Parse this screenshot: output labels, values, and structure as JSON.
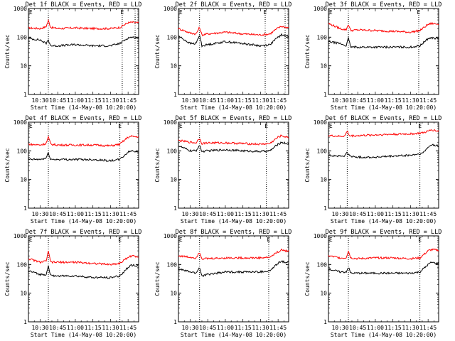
{
  "chart_data": [
    {
      "type": "line",
      "title": "Det 1f BLACK = Events, RED = LLD",
      "ylabel": "Counts/sec",
      "xlabel": "Start Time (14-May-08 10:20:00)",
      "yscale": "log",
      "ylim": [
        1,
        1000
      ],
      "xlim": [
        "10:20",
        "11:54"
      ],
      "yticks": [
        "1",
        "10",
        "100",
        "1000"
      ],
      "xticks": [
        "10:30",
        "10:45",
        "11:00",
        "11:15",
        "11:30",
        "11:45"
      ],
      "markers": [
        {
          "label": "E",
          "time": "10:22"
        },
        {
          "label": "E",
          "time": "11:40"
        }
      ],
      "vlines": [
        "10:37",
        "11:40",
        "11:51"
      ],
      "series": [
        {
          "name": "LLD",
          "color": "#ff0000",
          "x": [
            "10:20",
            "10:30",
            "10:35",
            "10:37",
            "10:39",
            "10:45",
            "11:00",
            "11:15",
            "11:30",
            "11:38",
            "11:45",
            "11:48",
            "11:52"
          ],
          "values": [
            210,
            200,
            230,
            380,
            220,
            200,
            210,
            200,
            200,
            220,
            320,
            330,
            320
          ]
        },
        {
          "name": "Events",
          "color": "#000000",
          "x": [
            "10:20",
            "10:30",
            "10:35",
            "10:37",
            "10:39",
            "10:45",
            "11:00",
            "11:15",
            "11:30",
            "11:38",
            "11:45",
            "11:48",
            "11:52"
          ],
          "values": [
            90,
            80,
            60,
            80,
            50,
            50,
            55,
            50,
            50,
            60,
            95,
            100,
            95
          ]
        }
      ]
    },
    {
      "type": "line",
      "title": "Det 2f BLACK = Events, RED = LLD",
      "ylabel": "Counts/sec",
      "xlabel": "Start Time (14-May-08 10:20:00)",
      "yscale": "log",
      "ylim": [
        1,
        1000
      ],
      "xlim": [
        "10:20",
        "11:54"
      ],
      "yticks": [
        "1",
        "10",
        "100",
        "1000"
      ],
      "xticks": [
        "10:30",
        "10:45",
        "11:00",
        "11:15",
        "11:30",
        "11:45"
      ],
      "markers": [
        {
          "label": "E",
          "time": "10:22"
        },
        {
          "label": "E",
          "time": "11:34"
        }
      ],
      "vlines": [
        "10:38",
        "11:34",
        "11:51"
      ],
      "series": [
        {
          "name": "LLD",
          "color": "#ff0000",
          "x": [
            "10:20",
            "10:30",
            "10:35",
            "10:38",
            "10:40",
            "10:45",
            "11:00",
            "11:15",
            "11:30",
            "11:38",
            "11:45",
            "11:48",
            "11:52"
          ],
          "values": [
            200,
            140,
            130,
            220,
            120,
            130,
            150,
            130,
            120,
            130,
            210,
            240,
            220
          ]
        },
        {
          "name": "Events",
          "color": "#000000",
          "x": [
            "10:20",
            "10:30",
            "10:35",
            "10:38",
            "10:40",
            "10:45",
            "11:00",
            "11:15",
            "11:30",
            "11:38",
            "11:45",
            "11:48",
            "11:52"
          ],
          "values": [
            110,
            60,
            60,
            120,
            50,
            55,
            70,
            60,
            50,
            55,
            100,
            120,
            110
          ]
        }
      ]
    },
    {
      "type": "line",
      "title": "Det 3f BLACK = Events, RED = LLD",
      "ylabel": "Counts/sec",
      "xlabel": "Start Time (14-May-08 10:20:00)",
      "yscale": "log",
      "ylim": [
        1,
        1000
      ],
      "xlim": [
        "10:20",
        "11:54"
      ],
      "yticks": [
        "1",
        "10",
        "100",
        "1000"
      ],
      "xticks": [
        "10:30",
        "10:45",
        "11:00",
        "11:15",
        "11:30",
        "11:45"
      ],
      "markers": [
        {
          "label": "E",
          "time": "10:22"
        },
        {
          "label": "E",
          "time": "11:37"
        }
      ],
      "vlines": [
        "10:37",
        "11:37"
      ],
      "series": [
        {
          "name": "LLD",
          "color": "#ff0000",
          "x": [
            "10:20",
            "10:30",
            "10:35",
            "10:37",
            "10:39",
            "10:45",
            "11:00",
            "11:15",
            "11:30",
            "11:38",
            "11:45",
            "11:48",
            "11:52"
          ],
          "values": [
            300,
            200,
            180,
            280,
            170,
            180,
            170,
            160,
            150,
            170,
            280,
            300,
            290
          ]
        },
        {
          "name": "Events",
          "color": "#000000",
          "x": [
            "10:20",
            "10:30",
            "10:35",
            "10:37",
            "10:39",
            "10:45",
            "11:00",
            "11:15",
            "11:30",
            "11:38",
            "11:45",
            "11:48",
            "11:52"
          ],
          "values": [
            70,
            60,
            50,
            90,
            45,
            45,
            45,
            45,
            45,
            50,
            90,
            95,
            90
          ]
        }
      ]
    },
    {
      "type": "line",
      "title": "Det 4f BLACK = Events, RED = LLD",
      "ylabel": "Counts/sec",
      "xlabel": "Start Time (14-May-08 10:20:00)",
      "yscale": "log",
      "ylim": [
        1,
        1000
      ],
      "xlim": [
        "10:20",
        "11:54"
      ],
      "yticks": [
        "1",
        "10",
        "100",
        "1000"
      ],
      "xticks": [
        "10:30",
        "10:45",
        "11:00",
        "11:15",
        "11:30",
        "11:45"
      ],
      "markers": [
        {
          "label": "E",
          "time": "10:22"
        },
        {
          "label": "E",
          "time": "11:38"
        }
      ],
      "vlines": [
        "10:37",
        "11:38"
      ],
      "series": [
        {
          "name": "LLD",
          "color": "#ff0000",
          "x": [
            "10:20",
            "10:30",
            "10:35",
            "10:37",
            "10:39",
            "10:45",
            "11:00",
            "11:15",
            "11:30",
            "11:38",
            "11:45",
            "11:48",
            "11:52"
          ],
          "values": [
            170,
            160,
            180,
            300,
            170,
            160,
            160,
            160,
            150,
            170,
            300,
            320,
            310
          ]
        },
        {
          "name": "Events",
          "color": "#000000",
          "x": [
            "10:20",
            "10:30",
            "10:35",
            "10:37",
            "10:39",
            "10:45",
            "11:00",
            "11:15",
            "11:30",
            "11:38",
            "11:45",
            "11:48",
            "11:52"
          ],
          "values": [
            50,
            50,
            55,
            85,
            50,
            50,
            50,
            50,
            45,
            50,
            90,
            100,
            95
          ]
        }
      ]
    },
    {
      "type": "line",
      "title": "Det 5f BLACK = Events, RED = LLD",
      "ylabel": "Counts/sec",
      "xlabel": "Start Time (14-May-08 10:20:00)",
      "yscale": "log",
      "ylim": [
        1,
        1000
      ],
      "xlim": [
        "10:20",
        "11:54"
      ],
      "yticks": [
        "1",
        "10",
        "100",
        "1000"
      ],
      "xticks": [
        "10:30",
        "10:45",
        "11:00",
        "11:15",
        "11:30",
        "11:45"
      ],
      "markers": [
        {
          "label": "E",
          "time": "10:22"
        },
        {
          "label": "E",
          "time": "11:35"
        }
      ],
      "vlines": [
        "10:38",
        "11:35"
      ],
      "series": [
        {
          "name": "LLD",
          "color": "#ff0000",
          "x": [
            "10:20",
            "10:30",
            "10:35",
            "10:38",
            "10:40",
            "10:45",
            "11:00",
            "11:15",
            "11:30",
            "11:38",
            "11:45",
            "11:48",
            "11:52"
          ],
          "values": [
            230,
            200,
            190,
            280,
            180,
            190,
            190,
            180,
            170,
            180,
            300,
            340,
            300
          ]
        },
        {
          "name": "Events",
          "color": "#000000",
          "x": [
            "10:20",
            "10:30",
            "10:35",
            "10:38",
            "10:40",
            "10:45",
            "11:00",
            "11:15",
            "11:30",
            "11:38",
            "11:45",
            "11:48",
            "11:52"
          ],
          "values": [
            150,
            100,
            100,
            160,
            95,
            100,
            110,
            100,
            95,
            100,
            170,
            200,
            180
          ]
        }
      ]
    },
    {
      "type": "line",
      "title": "Det 6f BLACK = Events, RED = LLD",
      "ylabel": "Counts/sec",
      "xlabel": "Start Time (14-May-08 10:20:00)",
      "yscale": "log",
      "ylim": [
        1,
        1000
      ],
      "xlim": [
        "10:20",
        "11:54"
      ],
      "yticks": [
        "1",
        "10",
        "100",
        "1000"
      ],
      "xticks": [
        "10:30",
        "10:45",
        "11:00",
        "11:15",
        "11:30",
        "11:45"
      ],
      "markers": [
        {
          "label": "E",
          "time": "10:22"
        },
        {
          "label": "E",
          "time": "11:38"
        }
      ],
      "vlines": [
        "10:36",
        "11:38"
      ],
      "series": [
        {
          "name": "LLD",
          "color": "#ff0000",
          "x": [
            "10:20",
            "10:30",
            "10:34",
            "10:36",
            "10:38",
            "10:45",
            "11:00",
            "11:15",
            "11:30",
            "11:40",
            "11:45",
            "11:48",
            "11:52"
          ],
          "values": [
            340,
            320,
            330,
            500,
            330,
            340,
            360,
            380,
            390,
            420,
            480,
            550,
            500
          ]
        },
        {
          "name": "Events",
          "color": "#000000",
          "x": [
            "10:20",
            "10:30",
            "10:34",
            "10:36",
            "10:38",
            "10:45",
            "11:00",
            "11:15",
            "11:30",
            "11:40",
            "11:45",
            "11:48",
            "11:52"
          ],
          "values": [
            70,
            65,
            65,
            95,
            65,
            60,
            60,
            65,
            70,
            80,
            130,
            170,
            150
          ]
        }
      ]
    },
    {
      "type": "line",
      "title": "Det 7f BLACK = Events, RED = LLD",
      "ylabel": "Counts/sec",
      "xlabel": "Start Time (14-May-08 10:20:00)",
      "yscale": "log",
      "ylim": [
        1,
        1000
      ],
      "xlim": [
        "10:20",
        "11:54"
      ],
      "yticks": [
        "1",
        "10",
        "100",
        "1000"
      ],
      "xticks": [
        "10:30",
        "10:45",
        "11:00",
        "11:15",
        "11:30",
        "11:45"
      ],
      "markers": [
        {
          "label": "E",
          "time": "10:22"
        },
        {
          "label": "E",
          "time": "11:38"
        }
      ],
      "vlines": [
        "10:37",
        "11:38"
      ],
      "series": [
        {
          "name": "LLD",
          "color": "#ff0000",
          "x": [
            "10:20",
            "10:30",
            "10:35",
            "10:37",
            "10:39",
            "10:45",
            "11:00",
            "11:15",
            "11:30",
            "11:38",
            "11:45",
            "11:48",
            "11:52"
          ],
          "values": [
            160,
            120,
            130,
            280,
            120,
            120,
            120,
            110,
            100,
            110,
            180,
            200,
            190
          ]
        },
        {
          "name": "Events",
          "color": "#000000",
          "x": [
            "10:20",
            "10:30",
            "10:35",
            "10:37",
            "10:39",
            "10:45",
            "11:00",
            "11:15",
            "11:30",
            "11:38",
            "11:45",
            "11:48",
            "11:52"
          ],
          "values": [
            60,
            45,
            45,
            90,
            40,
            40,
            40,
            35,
            35,
            40,
            80,
            95,
            90
          ]
        }
      ]
    },
    {
      "type": "line",
      "title": "Det 8f BLACK = Events, RED = LLD",
      "ylabel": "Counts/sec",
      "xlabel": "Start Time (14-May-08 10:20:00)",
      "yscale": "log",
      "ylim": [
        1,
        1000
      ],
      "xlim": [
        "10:20",
        "11:54"
      ],
      "yticks": [
        "1",
        "10",
        "100",
        "1000"
      ],
      "xticks": [
        "10:30",
        "10:45",
        "11:00",
        "11:15",
        "11:30",
        "11:45"
      ],
      "markers": [
        {
          "label": "E",
          "time": "10:22"
        },
        {
          "label": "E",
          "time": "11:37"
        }
      ],
      "vlines": [
        "10:38",
        "11:37"
      ],
      "series": [
        {
          "name": "LLD",
          "color": "#ff0000",
          "x": [
            "10:20",
            "10:30",
            "10:35",
            "10:38",
            "10:40",
            "10:45",
            "11:00",
            "11:15",
            "11:30",
            "11:38",
            "11:45",
            "11:48",
            "11:52"
          ],
          "values": [
            200,
            180,
            170,
            280,
            160,
            160,
            170,
            170,
            170,
            180,
            280,
            320,
            300
          ]
        },
        {
          "name": "Events",
          "color": "#000000",
          "x": [
            "10:20",
            "10:30",
            "10:35",
            "10:38",
            "10:40",
            "10:45",
            "11:00",
            "11:15",
            "11:30",
            "11:38",
            "11:45",
            "11:48",
            "11:52"
          ],
          "values": [
            70,
            55,
            50,
            80,
            40,
            45,
            55,
            55,
            55,
            60,
            110,
            130,
            120
          ]
        }
      ]
    },
    {
      "type": "line",
      "title": "Det 9f BLACK = Events, RED = LLD",
      "ylabel": "Counts/sec",
      "xlabel": "Start Time (14-May-08 10:20:00)",
      "yscale": "log",
      "ylim": [
        1,
        1000
      ],
      "xlim": [
        "10:20",
        "11:54"
      ],
      "yticks": [
        "1",
        "10",
        "100",
        "1000"
      ],
      "xticks": [
        "10:30",
        "10:45",
        "11:00",
        "11:15",
        "11:30",
        "11:45"
      ],
      "markers": [
        {
          "label": "E",
          "time": "10:22"
        },
        {
          "label": "E",
          "time": "11:38"
        }
      ],
      "vlines": [
        "10:37",
        "11:38"
      ],
      "series": [
        {
          "name": "LLD",
          "color": "#ff0000",
          "x": [
            "10:20",
            "10:30",
            "10:35",
            "10:37",
            "10:39",
            "10:45",
            "11:00",
            "11:15",
            "11:30",
            "11:38",
            "11:45",
            "11:48",
            "11:52"
          ],
          "values": [
            200,
            170,
            170,
            300,
            170,
            160,
            170,
            170,
            160,
            170,
            300,
            330,
            320
          ]
        },
        {
          "name": "Events",
          "color": "#000000",
          "x": [
            "10:20",
            "10:30",
            "10:35",
            "10:37",
            "10:39",
            "10:45",
            "11:00",
            "11:15",
            "11:30",
            "11:38",
            "11:45",
            "11:48",
            "11:52"
          ],
          "values": [
            70,
            55,
            55,
            80,
            50,
            50,
            50,
            50,
            50,
            55,
            100,
            120,
            110
          ]
        }
      ]
    }
  ]
}
